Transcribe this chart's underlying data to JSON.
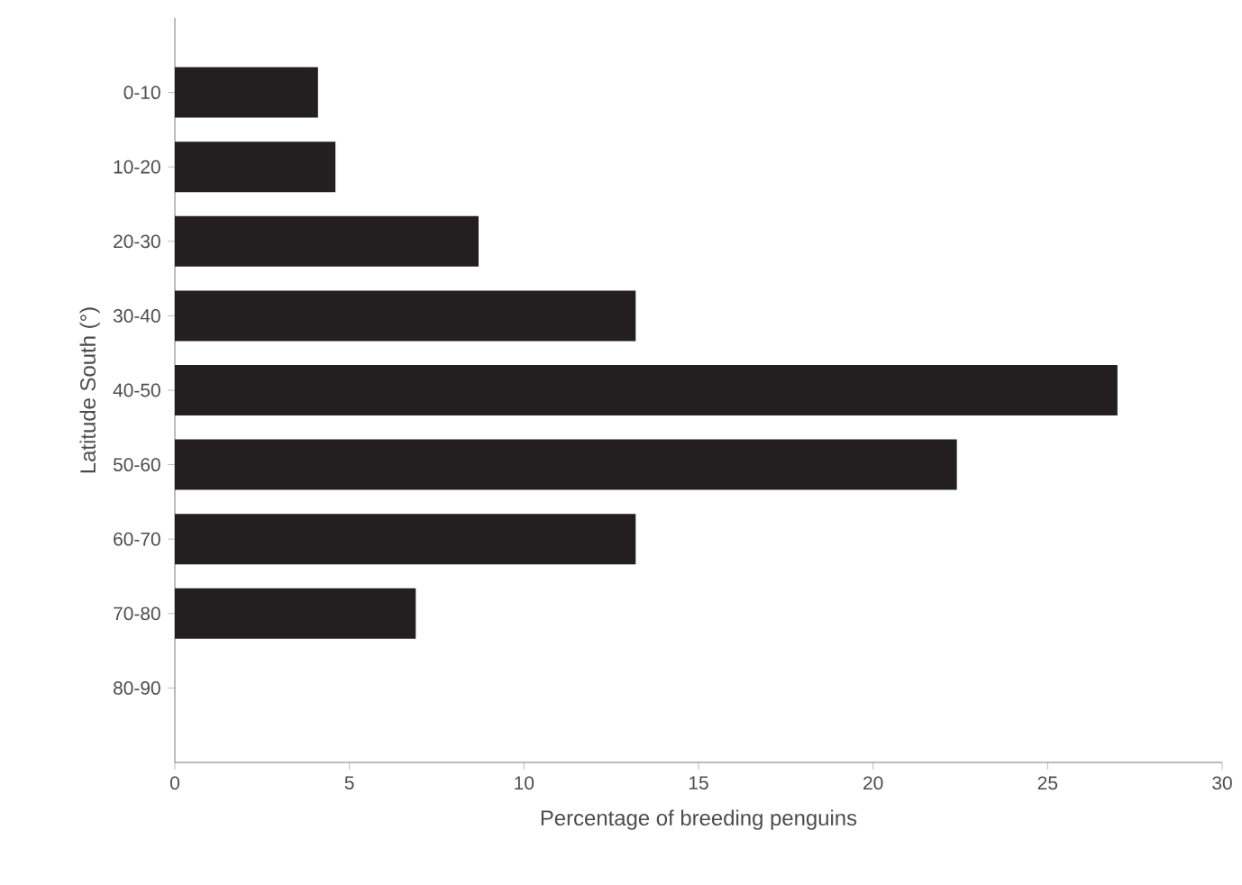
{
  "chart_data": {
    "type": "bar",
    "orientation": "horizontal",
    "xlabel": "Percentage of breeding penguins",
    "ylabel": "Latitude South (°)",
    "categories": [
      "0-10",
      "10-20",
      "20-30",
      "30-40",
      "40-50",
      "50-60",
      "60-70",
      "70-80",
      "80-90"
    ],
    "values": [
      4.1,
      4.6,
      8.7,
      13.2,
      27.0,
      22.4,
      13.2,
      6.9,
      null
    ],
    "color": "#231f20",
    "xlim": [
      0,
      30
    ],
    "xticks": [
      0,
      5,
      10,
      15,
      20,
      25,
      30
    ],
    "grid": false
  }
}
